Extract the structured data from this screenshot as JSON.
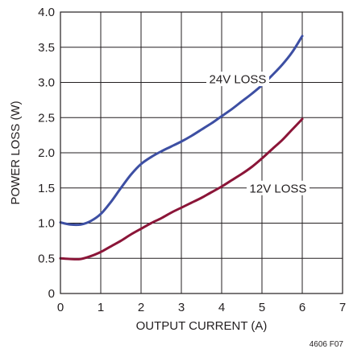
{
  "chart_data": {
    "type": "line",
    "xlabel": "OUTPUT CURRENT (A)",
    "ylabel": "POWER LOSS (W)",
    "xlim": [
      0,
      7
    ],
    "ylim": [
      0,
      4.0
    ],
    "x_ticks": [
      "0",
      "1",
      "2",
      "3",
      "4",
      "5",
      "6",
      "7"
    ],
    "y_ticks": [
      "0",
      "0.5",
      "1.0",
      "1.5",
      "2.0",
      "2.5",
      "3.0",
      "3.5",
      "4.0"
    ],
    "grid": true,
    "series": [
      {
        "name": "24V LOSS",
        "color": "#3d4fa3",
        "x": [
          0,
          0.25,
          0.5,
          0.75,
          1.0,
          1.25,
          1.5,
          1.75,
          2.0,
          2.25,
          2.5,
          2.75,
          3.0,
          3.25,
          3.5,
          3.75,
          4.0,
          4.25,
          4.5,
          4.75,
          5.0,
          5.25,
          5.5,
          5.75,
          6.0
        ],
        "y": [
          1.01,
          0.98,
          0.98,
          1.03,
          1.13,
          1.3,
          1.5,
          1.69,
          1.84,
          1.94,
          2.02,
          2.09,
          2.16,
          2.24,
          2.33,
          2.42,
          2.52,
          2.62,
          2.73,
          2.84,
          2.96,
          3.1,
          3.25,
          3.43,
          3.66
        ]
      },
      {
        "name": "12V LOSS",
        "color": "#8b1538",
        "x": [
          0,
          0.25,
          0.5,
          0.75,
          1.0,
          1.25,
          1.5,
          1.75,
          2.0,
          2.25,
          2.5,
          2.75,
          3.0,
          3.25,
          3.5,
          3.75,
          4.0,
          4.25,
          4.5,
          4.75,
          5.0,
          5.25,
          5.5,
          5.75,
          6.0
        ],
        "y": [
          0.5,
          0.49,
          0.49,
          0.53,
          0.59,
          0.67,
          0.75,
          0.84,
          0.92,
          1.0,
          1.07,
          1.15,
          1.22,
          1.29,
          1.36,
          1.44,
          1.52,
          1.61,
          1.7,
          1.8,
          1.92,
          2.05,
          2.18,
          2.33,
          2.48
        ]
      }
    ],
    "annotations": [
      {
        "text": "24V LOSS",
        "x": 4.4,
        "y": 3.05
      },
      {
        "text": "12V LOSS",
        "x": 5.4,
        "y": 1.5
      }
    ],
    "note": "4606 F07"
  }
}
